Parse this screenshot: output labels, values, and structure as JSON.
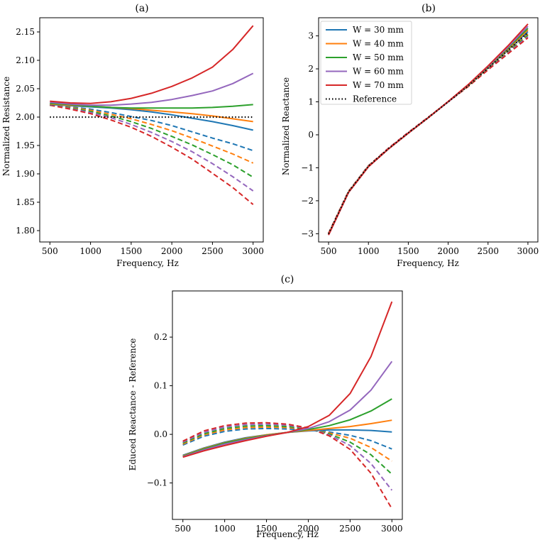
{
  "colors": {
    "W30": "#1f77b4",
    "W40": "#ff7f0e",
    "W50": "#2ca02c",
    "W60": "#9467bd",
    "W70": "#d62728",
    "reference": "#000000"
  },
  "legend": {
    "entries": [
      {
        "label": "W = 30 mm",
        "color_key": "W30",
        "style": "solid"
      },
      {
        "label": "W = 40 mm",
        "color_key": "W40",
        "style": "solid"
      },
      {
        "label": "W = 50 mm",
        "color_key": "W50",
        "style": "solid"
      },
      {
        "label": "W = 60 mm",
        "color_key": "W60",
        "style": "solid"
      },
      {
        "label": "W = 70 mm",
        "color_key": "W70",
        "style": "solid"
      },
      {
        "label": "Reference",
        "color_key": "reference",
        "style": "dotted"
      }
    ],
    "placement": "upper-left of panel (b)"
  },
  "chart_data": [
    {
      "id": "a",
      "type": "line",
      "title": "(a)",
      "xlabel": "Frequency, Hz",
      "ylabel": "Normalized Resistance",
      "xlim": [
        375,
        3125
      ],
      "ylim": [
        1.78,
        2.175
      ],
      "xticks": [
        500,
        1000,
        1500,
        2000,
        2500,
        3000
      ],
      "yticks": [
        1.8,
        1.85,
        1.9,
        1.95,
        2.0,
        2.05,
        2.1,
        2.15
      ],
      "ytick_decimals": 2,
      "x": [
        500,
        750,
        1000,
        1250,
        1500,
        1750,
        2000,
        2250,
        2500,
        2750,
        3000
      ],
      "series": [
        {
          "name": "W = 30 mm solid",
          "color_key": "W30",
          "style": "solid",
          "values": [
            2.022,
            2.02,
            2.018,
            2.016,
            2.013,
            2.009,
            2.004,
            1.998,
            1.992,
            1.985,
            1.977
          ]
        },
        {
          "name": "W = 40 mm solid",
          "color_key": "W40",
          "style": "solid",
          "values": [
            2.023,
            2.021,
            2.019,
            2.017,
            2.015,
            2.012,
            2.009,
            2.006,
            2.002,
            1.997,
            1.992
          ]
        },
        {
          "name": "W = 50 mm solid",
          "color_key": "W50",
          "style": "solid",
          "values": [
            2.024,
            2.022,
            2.019,
            2.017,
            2.016,
            2.016,
            2.016,
            2.016,
            2.017,
            2.019,
            2.022
          ]
        },
        {
          "name": "W = 60 mm solid",
          "color_key": "W60",
          "style": "solid",
          "values": [
            2.026,
            2.023,
            2.021,
            2.021,
            2.023,
            2.026,
            2.031,
            2.038,
            2.046,
            2.059,
            2.077
          ]
        },
        {
          "name": "W = 70 mm solid",
          "color_key": "W70",
          "style": "solid",
          "values": [
            2.028,
            2.025,
            2.024,
            2.027,
            2.033,
            2.042,
            2.054,
            2.069,
            2.088,
            2.119,
            2.161
          ]
        },
        {
          "name": "W = 30 mm dashed",
          "color_key": "W30",
          "style": "dashed",
          "values": [
            2.021,
            2.018,
            2.014,
            2.008,
            2.001,
            1.994,
            1.985,
            1.974,
            1.963,
            1.953,
            1.941
          ]
        },
        {
          "name": "W = 40 mm dashed",
          "color_key": "W40",
          "style": "dashed",
          "values": [
            2.021,
            2.017,
            2.012,
            2.005,
            1.997,
            1.987,
            1.976,
            1.963,
            1.949,
            1.935,
            1.919
          ]
        },
        {
          "name": "W = 50 mm dashed",
          "color_key": "W50",
          "style": "dashed",
          "values": [
            2.021,
            2.016,
            2.01,
            2.002,
            1.992,
            1.98,
            1.966,
            1.951,
            1.934,
            1.916,
            1.894
          ]
        },
        {
          "name": "W = 60 mm dashed",
          "color_key": "W60",
          "style": "dashed",
          "values": [
            2.021,
            2.015,
            2.008,
            1.999,
            1.987,
            1.973,
            1.957,
            1.939,
            1.918,
            1.895,
            1.87
          ]
        },
        {
          "name": "W = 70 mm dashed",
          "color_key": "W70",
          "style": "dashed",
          "values": [
            2.021,
            2.014,
            2.006,
            1.995,
            1.982,
            1.966,
            1.947,
            1.926,
            1.901,
            1.876,
            1.846
          ]
        },
        {
          "name": "Reference",
          "color_key": "reference",
          "style": "dotted",
          "values": [
            2.0,
            2.0,
            2.0,
            2.0,
            2.0,
            2.0,
            2.0,
            2.0,
            2.0,
            2.0,
            2.0
          ]
        }
      ]
    },
    {
      "id": "b",
      "type": "line",
      "title": "(b)",
      "xlabel": "Frequency, Hz",
      "ylabel": "Normalized Reactance",
      "xlim": [
        375,
        3125
      ],
      "ylim": [
        -3.25,
        3.55
      ],
      "xticks": [
        500,
        1000,
        1500,
        2000,
        2500,
        3000
      ],
      "yticks": [
        -3,
        -2,
        -1,
        0,
        1,
        2,
        3
      ],
      "ytick_decimals": 0,
      "x": [
        500,
        750,
        1000,
        1250,
        1500,
        1750,
        2000,
        2250,
        2500,
        2750,
        3000
      ],
      "series": [
        {
          "name": "W = 30 mm",
          "color_key": "W30",
          "style": "solid",
          "values": [
            -3.02,
            -1.74,
            -0.96,
            -0.43,
            0.05,
            0.52,
            1.0,
            1.49,
            2.03,
            2.58,
            3.13
          ]
        },
        {
          "name": "W = 40 mm",
          "color_key": "W40",
          "style": "solid",
          "values": [
            -3.02,
            -1.74,
            -0.96,
            -0.43,
            0.05,
            0.52,
            1.0,
            1.49,
            2.04,
            2.6,
            3.18
          ]
        },
        {
          "name": "W = 50 mm",
          "color_key": "W50",
          "style": "solid",
          "values": [
            -3.03,
            -1.74,
            -0.96,
            -0.43,
            0.05,
            0.52,
            1.0,
            1.5,
            2.05,
            2.63,
            3.23
          ]
        },
        {
          "name": "W = 60 mm",
          "color_key": "W60",
          "style": "solid",
          "values": [
            -3.04,
            -1.75,
            -0.97,
            -0.43,
            0.05,
            0.52,
            1.0,
            1.51,
            2.07,
            2.66,
            3.29
          ]
        },
        {
          "name": "W = 70 mm",
          "color_key": "W70",
          "style": "solid",
          "values": [
            -3.04,
            -1.75,
            -0.97,
            -0.43,
            0.05,
            0.52,
            1.01,
            1.52,
            2.09,
            2.7,
            3.36
          ]
        },
        {
          "name": "W = 30 mm dashed",
          "color_key": "W30",
          "style": "dashed",
          "values": [
            -2.99,
            -1.72,
            -0.94,
            -0.42,
            0.06,
            0.53,
            1.0,
            1.48,
            2.01,
            2.54,
            3.08
          ]
        },
        {
          "name": "W = 40 mm dashed",
          "color_key": "W40",
          "style": "dashed",
          "values": [
            -2.99,
            -1.72,
            -0.94,
            -0.42,
            0.06,
            0.53,
            1.0,
            1.48,
            2.0,
            2.52,
            3.05
          ]
        },
        {
          "name": "W = 50 mm dashed",
          "color_key": "W50",
          "style": "dashed",
          "values": [
            -2.99,
            -1.72,
            -0.94,
            -0.42,
            0.06,
            0.53,
            1.0,
            1.47,
            1.99,
            2.5,
            3.02
          ]
        },
        {
          "name": "W = 60 mm dashed",
          "color_key": "W60",
          "style": "dashed",
          "values": [
            -2.99,
            -1.72,
            -0.94,
            -0.41,
            0.07,
            0.53,
            1.0,
            1.47,
            1.98,
            2.48,
            2.98
          ]
        },
        {
          "name": "W = 70 mm dashed",
          "color_key": "W70",
          "style": "dashed",
          "values": [
            -2.99,
            -1.72,
            -0.94,
            -0.41,
            0.07,
            0.53,
            1.0,
            1.46,
            1.97,
            2.46,
            2.94
          ]
        },
        {
          "name": "Reference",
          "color_key": "reference",
          "style": "dotted",
          "values": [
            -3.0,
            -1.73,
            -0.95,
            -0.42,
            0.06,
            0.52,
            1.0,
            1.48,
            2.02,
            2.56,
            3.1
          ]
        }
      ]
    },
    {
      "id": "c",
      "type": "line",
      "title": "(c)",
      "xlabel": "Frequency, Hz",
      "ylabel": "Educed Reactance - Reference",
      "xlim": [
        375,
        3125
      ],
      "ylim": [
        -0.175,
        0.295
      ],
      "xticks": [
        500,
        1000,
        1500,
        2000,
        2500,
        3000
      ],
      "yticks": [
        -0.1,
        0.0,
        0.1,
        0.2
      ],
      "ytick_decimals": 1,
      "x": [
        500,
        750,
        1000,
        1250,
        1500,
        1750,
        2000,
        2250,
        2500,
        2750,
        3000
      ],
      "series": [
        {
          "name": "W = 30 mm solid",
          "color_key": "W30",
          "style": "solid",
          "values": [
            -0.043,
            -0.028,
            -0.016,
            -0.007,
            -0.001,
            0.004,
            0.007,
            0.009,
            0.009,
            0.008,
            0.005
          ]
        },
        {
          "name": "W = 40 mm solid",
          "color_key": "W40",
          "style": "solid",
          "values": [
            -0.044,
            -0.029,
            -0.017,
            -0.008,
            -0.001,
            0.004,
            0.008,
            0.012,
            0.016,
            0.022,
            0.029
          ]
        },
        {
          "name": "W = 50 mm solid",
          "color_key": "W50",
          "style": "solid",
          "values": [
            -0.045,
            -0.03,
            -0.018,
            -0.009,
            -0.002,
            0.004,
            0.01,
            0.018,
            0.03,
            0.048,
            0.073
          ]
        },
        {
          "name": "W = 60 mm solid",
          "color_key": "W60",
          "style": "solid",
          "values": [
            -0.046,
            -0.032,
            -0.02,
            -0.011,
            -0.003,
            0.004,
            0.012,
            0.026,
            0.05,
            0.091,
            0.15
          ]
        },
        {
          "name": "W = 70 mm solid",
          "color_key": "W70",
          "style": "solid",
          "values": [
            -0.047,
            -0.034,
            -0.023,
            -0.013,
            -0.004,
            0.004,
            0.016,
            0.039,
            0.084,
            0.16,
            0.273
          ]
        },
        {
          "name": "W = 30 mm dashed",
          "color_key": "W30",
          "style": "dashed",
          "values": [
            -0.022,
            -0.004,
            0.006,
            0.011,
            0.012,
            0.011,
            0.009,
            0.005,
            -0.002,
            -0.013,
            -0.03
          ]
        },
        {
          "name": "W = 40 mm dashed",
          "color_key": "W40",
          "style": "dashed",
          "values": [
            -0.02,
            -0.001,
            0.009,
            0.014,
            0.015,
            0.014,
            0.01,
            0.003,
            -0.008,
            -0.027,
            -0.055
          ]
        },
        {
          "name": "W = 50 mm dashed",
          "color_key": "W50",
          "style": "dashed",
          "values": [
            -0.018,
            0.001,
            0.012,
            0.017,
            0.018,
            0.016,
            0.011,
            0.001,
            -0.016,
            -0.042,
            -0.082
          ]
        },
        {
          "name": "W = 60 mm dashed",
          "color_key": "W60",
          "style": "dashed",
          "values": [
            -0.016,
            0.004,
            0.015,
            0.02,
            0.021,
            0.019,
            0.012,
            -0.001,
            -0.023,
            -0.06,
            -0.115
          ]
        },
        {
          "name": "W = 70 mm dashed",
          "color_key": "W70",
          "style": "dashed",
          "values": [
            -0.014,
            0.007,
            0.018,
            0.023,
            0.024,
            0.021,
            0.013,
            -0.003,
            -0.031,
            -0.08,
            -0.153
          ]
        }
      ]
    }
  ]
}
